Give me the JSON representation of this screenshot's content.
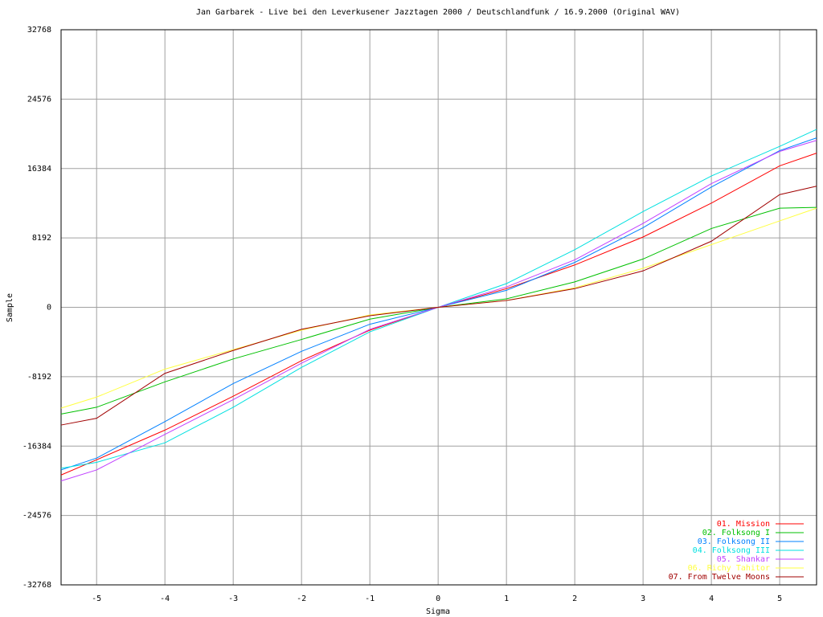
{
  "chart_data": {
    "type": "line",
    "title": "Jan Garbarek - Live bei den Leverkusener Jazztagen 2000 / Deutschlandfunk / 16.9.2000 (Original WAV)",
    "x_label": "Sigma",
    "y_label": "Sample",
    "x": [
      -5.52,
      -5,
      -4,
      -3,
      -2,
      -1,
      0,
      1,
      2,
      3,
      4,
      5,
      5.54
    ],
    "series": [
      {
        "name": "01. Mission",
        "color": "#ff0000",
        "values": [
          -19800,
          -18000,
          -14500,
          -10500,
          -6300,
          -2700,
          0,
          2200,
          5000,
          8300,
          12300,
          16700,
          18200
        ]
      },
      {
        "name": "02. Folksong I",
        "color": "#00c000",
        "values": [
          -12600,
          -11800,
          -8800,
          -6100,
          -3800,
          -1400,
          0,
          1000,
          3000,
          5700,
          9300,
          11700,
          11800
        ]
      },
      {
        "name": "03. Folksong II",
        "color": "#0080ff",
        "values": [
          -19200,
          -17800,
          -13500,
          -9000,
          -5200,
          -2000,
          0,
          2000,
          5300,
          9400,
          14200,
          18500,
          20000
        ]
      },
      {
        "name": "04. Folksong III",
        "color": "#00e0e0",
        "values": [
          -19000,
          -18300,
          -16000,
          -11800,
          -7100,
          -2900,
          0,
          2800,
          6800,
          11300,
          15500,
          19000,
          21000
        ]
      },
      {
        "name": "05. Shankar",
        "color": "#c040ff",
        "values": [
          -20500,
          -19200,
          -15000,
          -10900,
          -6600,
          -2600,
          0,
          2400,
          5600,
          9900,
          14600,
          18400,
          19700
        ]
      },
      {
        "name": "06. Richy Tahitor",
        "color": "#ffff40",
        "values": [
          -11900,
          -10600,
          -7300,
          -5000,
          -2700,
          -900,
          0,
          800,
          2300,
          4600,
          7400,
          10200,
          11700
        ]
      },
      {
        "name": "07. From Twelve Moons",
        "color": "#a00000",
        "values": [
          -13900,
          -13100,
          -7800,
          -5100,
          -2600,
          -1000,
          0,
          800,
          2200,
          4300,
          7800,
          13300,
          14300
        ]
      }
    ],
    "xlim": [
      -5.52,
      5.54
    ],
    "xticks": [
      -5,
      -4,
      -3,
      -2,
      -1,
      0,
      1,
      2,
      3,
      4,
      5
    ],
    "ylim": [
      -32768,
      32768
    ],
    "yticks": [
      -32768,
      -24576,
      -16384,
      -8192,
      0,
      8192,
      16384,
      24576,
      32768
    ],
    "grid": true,
    "legend": "bottom-right"
  }
}
